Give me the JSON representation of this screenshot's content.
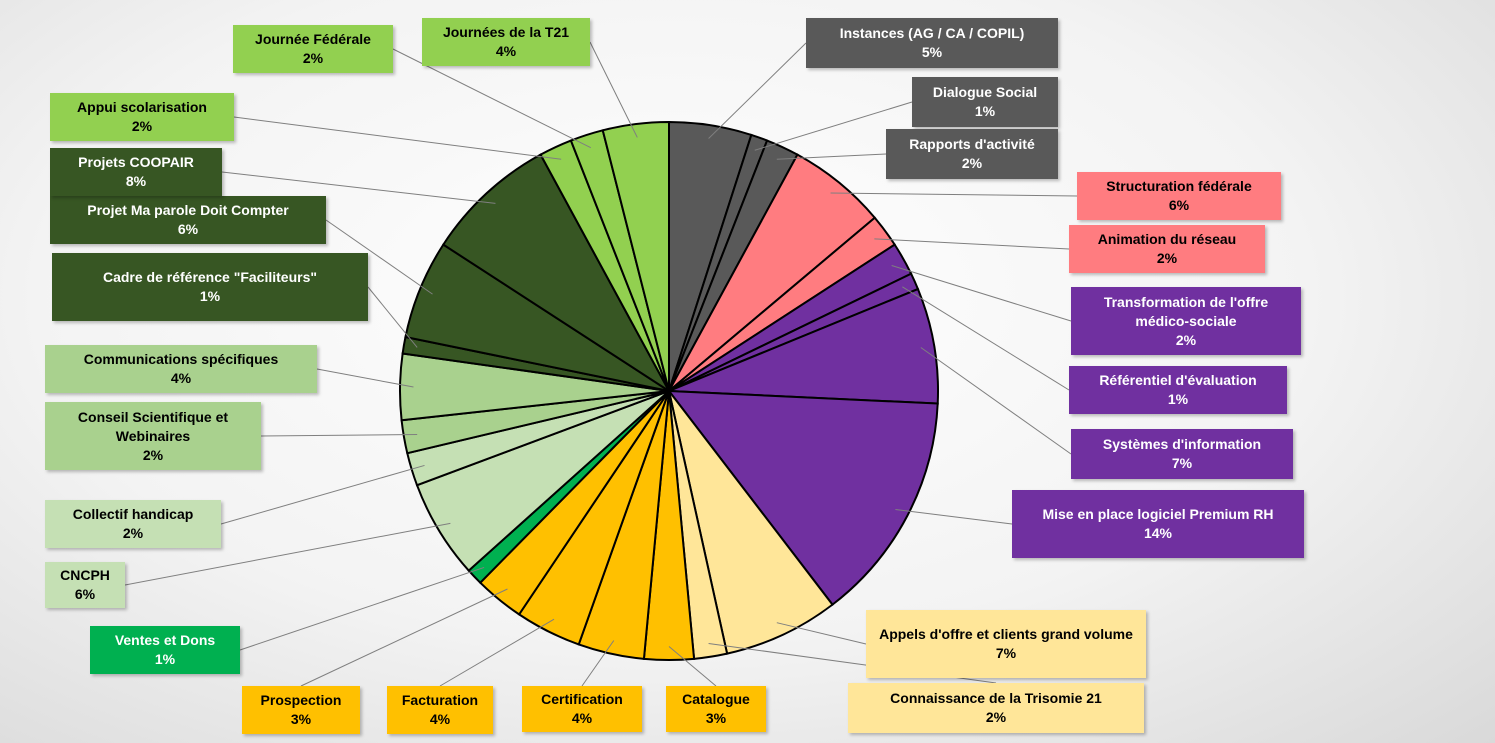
{
  "chart_data": {
    "type": "pie",
    "categories": [
      "Instances (AG / CA / COPIL)",
      "Dialogue Social",
      "Rapports d'activité",
      "Structuration fédérale",
      "Animation du réseau",
      "Transformation de l'offre médico-sociale",
      "Référentiel d'évaluation",
      "Systèmes d'information",
      "Mise en place logiciel Premium RH",
      "Appels d'offre et clients grand volume",
      "Connaissance de la Trisomie 21",
      "Catalogue",
      "Certification",
      "Facturation",
      "Prospection",
      "Ventes et Dons",
      "CNCPH",
      "Collectif handicap",
      "Conseil Scientifique et Webinaires",
      "Communications  spécifiques",
      "Cadre de référence \"Faciliteurs\"",
      "Projet Ma parole Doit Compter",
      "Projets COOPAIR",
      "Appui scolarisation",
      "Journée Fédérale",
      "Journées de la T21"
    ],
    "values": [
      5,
      1,
      2,
      6,
      2,
      2,
      1,
      7,
      14,
      7,
      2,
      3,
      4,
      4,
      3,
      1,
      6,
      2,
      2,
      4,
      1,
      6,
      8,
      2,
      2,
      4
    ],
    "value_labels": [
      "5%",
      "1%",
      "2%",
      "6%",
      "2%",
      "2%",
      "1%",
      "7%",
      "14%",
      "7%",
      "2%",
      "3%",
      "4%",
      "4%",
      "3%",
      "1%",
      "6%",
      "2%",
      "2%",
      "4%",
      "1%",
      "6%",
      "8%",
      "2%",
      "2%",
      "4%"
    ],
    "colors": [
      "#595959",
      "#595959",
      "#595959",
      "#ff7c80",
      "#ff7c80",
      "#7030a0",
      "#7030a0",
      "#7030a0",
      "#7030a0",
      "#ffe699",
      "#ffe699",
      "#ffc000",
      "#ffc000",
      "#ffc000",
      "#ffc000",
      "#00b050",
      "#c5e0b4",
      "#c5e0b4",
      "#a9d18e",
      "#a9d18e",
      "#375623",
      "#375623",
      "#375623",
      "#92d050",
      "#92d050",
      "#92d050"
    ]
  }
}
